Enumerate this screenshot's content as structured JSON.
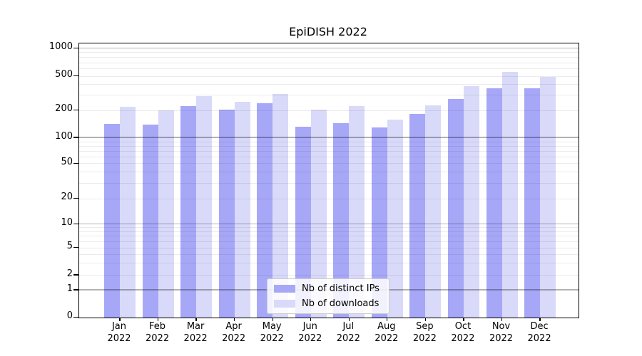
{
  "chart_data": {
    "type": "bar",
    "title": "EpiDISH 2022",
    "xlabel": "",
    "ylabel": "",
    "yscale": "log (with 0 baseline)",
    "ylim": [
      0,
      1120
    ],
    "grid": "horizontal, major gray at decades + faint minors drawn over bars",
    "legend_position": "bottom-center inside plot",
    "yticks": [
      1000,
      500,
      200,
      100,
      50,
      20,
      10,
      5,
      2,
      1,
      0
    ],
    "categories": [
      {
        "month": "Jan",
        "year": "2022"
      },
      {
        "month": "Feb",
        "year": "2022"
      },
      {
        "month": "Mar",
        "year": "2022"
      },
      {
        "month": "Apr",
        "year": "2022"
      },
      {
        "month": "May",
        "year": "2022"
      },
      {
        "month": "Jun",
        "year": "2022"
      },
      {
        "month": "Jul",
        "year": "2022"
      },
      {
        "month": "Aug",
        "year": "2022"
      },
      {
        "month": "Sep",
        "year": "2022"
      },
      {
        "month": "Oct",
        "year": "2022"
      },
      {
        "month": "Nov",
        "year": "2022"
      },
      {
        "month": "Dec",
        "year": "2022"
      }
    ],
    "series": [
      {
        "name": "Nb of distinct IPs",
        "key": "distinct-ips",
        "color": "#a7a7f8",
        "values": [
          142,
          138,
          222,
          202,
          242,
          132,
          143,
          129,
          182,
          270,
          357,
          355
        ]
      },
      {
        "name": "Nb of downloads",
        "key": "downloads",
        "color": "#d9d9f9",
        "values": [
          216,
          199,
          288,
          250,
          308,
          201,
          224,
          158,
          227,
          380,
          553,
          490
        ]
      }
    ]
  },
  "colors": {
    "major_grid": "#b0b0b0",
    "minor_grid": "#e8e8e8",
    "axis": "#000000",
    "background": "#ffffff"
  }
}
